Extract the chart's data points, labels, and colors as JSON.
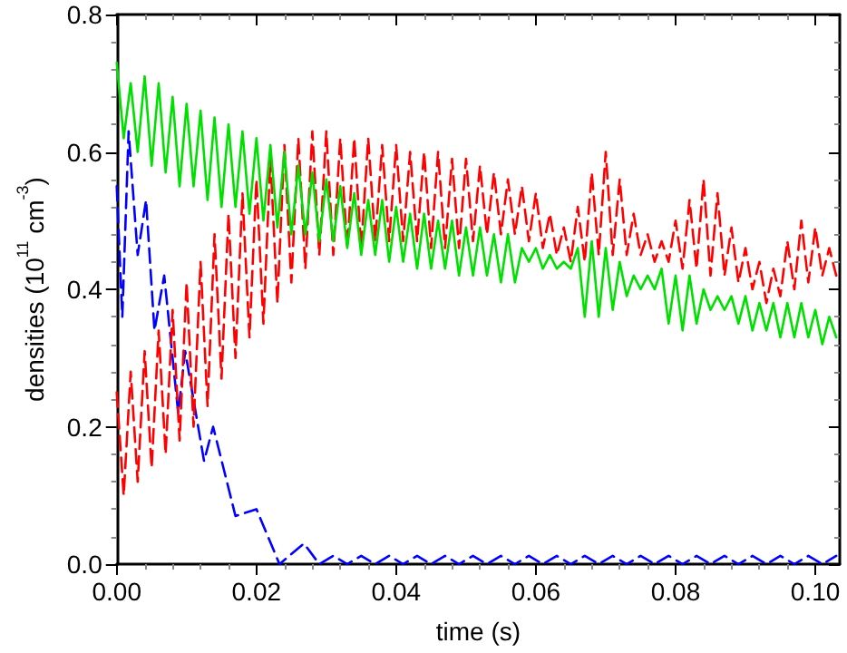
{
  "chart_data": {
    "type": "line",
    "xlabel": "time (s)",
    "ylabel": "densities (10$^{11}$ cm$^{-3}$)",
    "xlim": [
      0,
      0.1035
    ],
    "ylim": [
      0,
      0.8
    ],
    "xticks": [
      {
        "value": 0,
        "label": "0.00"
      },
      {
        "value": 0.02,
        "label": "0.02"
      },
      {
        "value": 0.04,
        "label": "0.04"
      },
      {
        "value": 0.06,
        "label": "0.06"
      },
      {
        "value": 0.08,
        "label": "0.08"
      },
      {
        "value": 0.1,
        "label": "0.10"
      }
    ],
    "yticks": [
      {
        "value": 0,
        "label": "0.0"
      },
      {
        "value": 0.2,
        "label": "0.2"
      },
      {
        "value": 0.4,
        "label": "0.4"
      },
      {
        "value": 0.6,
        "label": "0.6"
      },
      {
        "value": 0.8,
        "label": "0.8"
      }
    ],
    "grid": false,
    "marker": "none",
    "series": [
      {
        "color": "#00e000",
        "line_style": "solid",
        "x": [
          0,
          0.001,
          0.002,
          0.003,
          0.004,
          0.005,
          0.006,
          0.007,
          0.008,
          0.009,
          0.01,
          0.011,
          0.012,
          0.013,
          0.014,
          0.015,
          0.016,
          0.017,
          0.018,
          0.019,
          0.02,
          0.021,
          0.022,
          0.023,
          0.024,
          0.025,
          0.026,
          0.027,
          0.028,
          0.029,
          0.03,
          0.031,
          0.032,
          0.033,
          0.034,
          0.035,
          0.036,
          0.037,
          0.038,
          0.039,
          0.04,
          0.041,
          0.042,
          0.043,
          0.044,
          0.045,
          0.046,
          0.047,
          0.048,
          0.049,
          0.05,
          0.051,
          0.052,
          0.053,
          0.054,
          0.055,
          0.056,
          0.057,
          0.058,
          0.059,
          0.06,
          0.061,
          0.062,
          0.063,
          0.064,
          0.065,
          0.066,
          0.067,
          0.068,
          0.069,
          0.07,
          0.071,
          0.072,
          0.073,
          0.074,
          0.075,
          0.076,
          0.077,
          0.078,
          0.079,
          0.08,
          0.081,
          0.082,
          0.083,
          0.084,
          0.085,
          0.086,
          0.087,
          0.088,
          0.089,
          0.09,
          0.091,
          0.092,
          0.093,
          0.094,
          0.095,
          0.096,
          0.097,
          0.098,
          0.099,
          0.1,
          0.101,
          0.102,
          0.103
        ],
        "values": [
          0.73,
          0.62,
          0.7,
          0.6,
          0.71,
          0.58,
          0.7,
          0.57,
          0.68,
          0.55,
          0.67,
          0.55,
          0.66,
          0.53,
          0.65,
          0.52,
          0.64,
          0.52,
          0.63,
          0.51,
          0.62,
          0.5,
          0.61,
          0.49,
          0.6,
          0.48,
          0.58,
          0.48,
          0.57,
          0.47,
          0.56,
          0.47,
          0.55,
          0.46,
          0.54,
          0.45,
          0.53,
          0.45,
          0.53,
          0.44,
          0.52,
          0.44,
          0.51,
          0.43,
          0.51,
          0.43,
          0.5,
          0.43,
          0.5,
          0.42,
          0.49,
          0.42,
          0.49,
          0.42,
          0.48,
          0.41,
          0.48,
          0.41,
          0.46,
          0.44,
          0.46,
          0.43,
          0.45,
          0.43,
          0.44,
          0.43,
          0.46,
          0.36,
          0.47,
          0.36,
          0.46,
          0.37,
          0.44,
          0.39,
          0.42,
          0.4,
          0.42,
          0.4,
          0.43,
          0.35,
          0.42,
          0.34,
          0.42,
          0.35,
          0.4,
          0.37,
          0.39,
          0.37,
          0.39,
          0.35,
          0.39,
          0.34,
          0.38,
          0.34,
          0.38,
          0.33,
          0.38,
          0.33,
          0.38,
          0.33,
          0.37,
          0.32,
          0.36,
          0.33
        ]
      },
      {
        "color": "#ff0000",
        "line_style": "dashed",
        "x": [
          0,
          0.001,
          0.002,
          0.003,
          0.004,
          0.005,
          0.006,
          0.007,
          0.008,
          0.009,
          0.01,
          0.011,
          0.012,
          0.013,
          0.014,
          0.015,
          0.016,
          0.017,
          0.018,
          0.019,
          0.02,
          0.021,
          0.022,
          0.023,
          0.024,
          0.025,
          0.026,
          0.027,
          0.028,
          0.029,
          0.03,
          0.031,
          0.032,
          0.033,
          0.034,
          0.035,
          0.036,
          0.037,
          0.038,
          0.039,
          0.04,
          0.041,
          0.042,
          0.043,
          0.044,
          0.045,
          0.046,
          0.047,
          0.048,
          0.049,
          0.05,
          0.051,
          0.052,
          0.053,
          0.054,
          0.055,
          0.056,
          0.057,
          0.058,
          0.059,
          0.06,
          0.061,
          0.062,
          0.063,
          0.064,
          0.065,
          0.066,
          0.067,
          0.068,
          0.069,
          0.07,
          0.071,
          0.072,
          0.073,
          0.074,
          0.075,
          0.076,
          0.077,
          0.078,
          0.079,
          0.08,
          0.081,
          0.082,
          0.083,
          0.084,
          0.085,
          0.086,
          0.087,
          0.088,
          0.089,
          0.09,
          0.091,
          0.092,
          0.093,
          0.094,
          0.095,
          0.096,
          0.097,
          0.098,
          0.099,
          0.1,
          0.101,
          0.102,
          0.103
        ],
        "values": [
          0.25,
          0.1,
          0.28,
          0.12,
          0.31,
          0.14,
          0.34,
          0.16,
          0.37,
          0.18,
          0.41,
          0.2,
          0.44,
          0.23,
          0.48,
          0.27,
          0.51,
          0.3,
          0.54,
          0.33,
          0.56,
          0.35,
          0.59,
          0.38,
          0.61,
          0.41,
          0.62,
          0.43,
          0.63,
          0.45,
          0.63,
          0.45,
          0.62,
          0.46,
          0.62,
          0.46,
          0.62,
          0.47,
          0.61,
          0.47,
          0.61,
          0.47,
          0.6,
          0.47,
          0.6,
          0.46,
          0.6,
          0.46,
          0.59,
          0.46,
          0.59,
          0.47,
          0.58,
          0.48,
          0.57,
          0.48,
          0.56,
          0.48,
          0.55,
          0.47,
          0.54,
          0.46,
          0.51,
          0.45,
          0.49,
          0.44,
          0.52,
          0.44,
          0.57,
          0.45,
          0.6,
          0.45,
          0.56,
          0.45,
          0.51,
          0.45,
          0.48,
          0.44,
          0.47,
          0.44,
          0.5,
          0.43,
          0.53,
          0.43,
          0.56,
          0.42,
          0.54,
          0.42,
          0.49,
          0.41,
          0.46,
          0.4,
          0.44,
          0.38,
          0.43,
          0.39,
          0.47,
          0.4,
          0.5,
          0.41,
          0.49,
          0.42,
          0.46,
          0.42
        ]
      },
      {
        "color": "#0000ff",
        "line_style": "dashed",
        "x": [
          0,
          0.0008,
          0.0017,
          0.003,
          0.0042,
          0.0054,
          0.0068,
          0.0088,
          0.0098,
          0.0125,
          0.0138,
          0.017,
          0.02,
          0.0233,
          0.0268,
          0.029,
          0.031,
          0.033,
          0.035,
          0.037,
          0.039,
          0.041,
          0.043,
          0.045,
          0.047,
          0.049,
          0.051,
          0.053,
          0.055,
          0.057,
          0.059,
          0.061,
          0.063,
          0.065,
          0.067,
          0.069,
          0.071,
          0.073,
          0.075,
          0.077,
          0.079,
          0.081,
          0.083,
          0.085,
          0.087,
          0.089,
          0.091,
          0.093,
          0.095,
          0.097,
          0.099,
          0.101,
          0.103
        ],
        "values": [
          0.55,
          0.36,
          0.63,
          0.45,
          0.53,
          0.34,
          0.42,
          0.22,
          0.31,
          0.15,
          0.2,
          0.07,
          0.08,
          0,
          0.03,
          0,
          0.012,
          0,
          0.012,
          0,
          0.012,
          0,
          0.012,
          0,
          0.012,
          0,
          0.012,
          0,
          0.012,
          0,
          0.012,
          0,
          0.012,
          0,
          0.012,
          0,
          0.012,
          0,
          0.012,
          0,
          0.012,
          0,
          0.012,
          0,
          0.012,
          0,
          0.012,
          0,
          0.012,
          0,
          0.012,
          0,
          0.012
        ]
      }
    ]
  }
}
